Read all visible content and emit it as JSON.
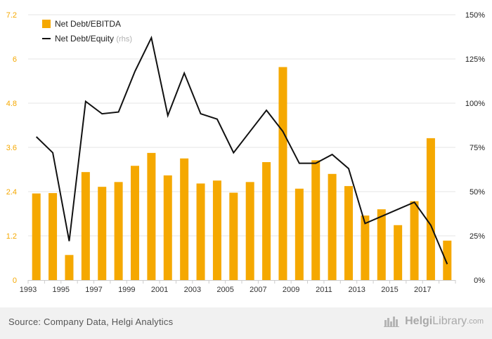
{
  "chart_data": {
    "type": "bar+line",
    "x": [
      1993,
      1994,
      1995,
      1996,
      1997,
      1998,
      1999,
      2000,
      2001,
      2002,
      2003,
      2004,
      2005,
      2006,
      2007,
      2008,
      2009,
      2010,
      2011,
      2012,
      2013,
      2014,
      2015,
      2016,
      2017,
      2018
    ],
    "x_tick_labels": [
      "1993",
      "1995",
      "1997",
      "1999",
      "2001",
      "2003",
      "2005",
      "2007",
      "2009",
      "2011",
      "2013",
      "2015",
      "2017"
    ],
    "series": [
      {
        "name": "Net Debt/EBITDA",
        "type": "bar",
        "axis": "left",
        "color": "#f5a800",
        "values": [
          2.35,
          2.36,
          0.68,
          2.93,
          2.53,
          2.66,
          3.1,
          3.45,
          2.84,
          3.3,
          2.62,
          2.7,
          2.37,
          2.66,
          3.2,
          5.78,
          2.48,
          3.25,
          2.88,
          2.55,
          1.75,
          1.92,
          1.49,
          2.14,
          3.85,
          1.07
        ]
      },
      {
        "name": "Net Debt/Equity",
        "name_suffix": "(rhs)",
        "type": "line",
        "axis": "right",
        "color": "#111111",
        "values": [
          81,
          72,
          22,
          101,
          94,
          95,
          118,
          137,
          93,
          117,
          94,
          91,
          72,
          84,
          96,
          84,
          66,
          66,
          71,
          63,
          32,
          36,
          40,
          44,
          31,
          9
        ]
      }
    ],
    "left_axis": {
      "ylim": [
        0,
        7.2
      ],
      "ticks": [
        "0",
        "1.2",
        "2.4",
        "3.6",
        "4.8",
        "6",
        "7.2"
      ],
      "tick_color": "#f5a800"
    },
    "right_axis": {
      "ylim": [
        0,
        150
      ],
      "ticks": [
        "0%",
        "25%",
        "50%",
        "75%",
        "100%",
        "125%",
        "150%"
      ]
    },
    "grid": "horizontal",
    "legend_position": "top-left"
  },
  "footer": {
    "source": "Source: Company Data, Helgi Analytics",
    "brand_part1": "Helgi",
    "brand_part2": "Library",
    "brand_suffix": ".com"
  }
}
